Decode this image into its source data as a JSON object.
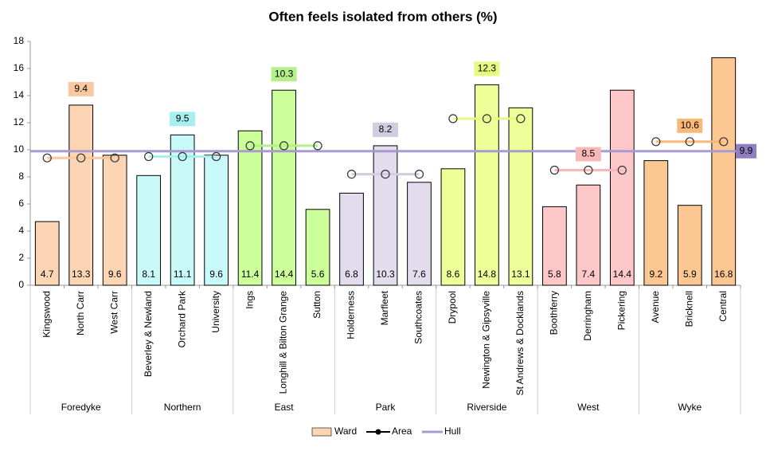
{
  "chart_data": {
    "type": "bar",
    "title": "Often feels isolated from others (%)",
    "ylim": [
      0,
      18
    ],
    "yticks": [
      0,
      2,
      4,
      6,
      8,
      10,
      12,
      14,
      16,
      18
    ],
    "groups": [
      {
        "name": "Foredyke",
        "color": "#fcd5b5",
        "area_color": "#f8c8a0",
        "area": 9.4,
        "categories": [
          "Kingswood",
          "North Carr",
          "West Carr"
        ],
        "values": [
          4.7,
          13.3,
          9.6
        ]
      },
      {
        "name": "Northern",
        "color": "#c8fafa",
        "area_color": "#a8f0f0",
        "area": 9.5,
        "categories": [
          "Beverley & Newland",
          "Orchard Park",
          "University"
        ],
        "values": [
          8.1,
          11.1,
          9.6
        ]
      },
      {
        "name": "East",
        "color": "#ccff99",
        "area_color": "#b4f08a",
        "area": 10.3,
        "categories": [
          "Ings",
          "Longhill & Bilton Grange",
          "Sutton"
        ],
        "values": [
          11.4,
          14.4,
          5.6
        ]
      },
      {
        "name": "Park",
        "color": "#e2dced",
        "area_color": "#d2cce0",
        "area": 8.2,
        "categories": [
          "Holderness",
          "Marfleet",
          "Southcoates"
        ],
        "values": [
          6.8,
          10.3,
          7.6
        ]
      },
      {
        "name": "Riverside",
        "color": "#eeff99",
        "area_color": "#e4fa80",
        "area": 12.3,
        "categories": [
          "Drypool",
          "Newington & Gipsyville",
          "St Andrews & Docklands"
        ],
        "values": [
          8.6,
          14.8,
          13.1
        ]
      },
      {
        "name": "West",
        "color": "#ffc8c8",
        "area_color": "#f8b8b8",
        "area": 8.5,
        "categories": [
          "Boothferry",
          "Derringham",
          "Pickering"
        ],
        "values": [
          5.8,
          7.4,
          14.4
        ]
      },
      {
        "name": "Wyke",
        "color": "#fdc793",
        "area_color": "#f8b878",
        "area": 10.6,
        "categories": [
          "Avenue",
          "Bricknell",
          "Central"
        ],
        "values": [
          9.2,
          5.9,
          16.8
        ]
      }
    ],
    "hull": {
      "name": "Hull",
      "value": 9.9,
      "color": "#a99bd0",
      "label_color": "#8f7fc0"
    },
    "ward_legend": "Ward",
    "area_legend": "Area"
  }
}
